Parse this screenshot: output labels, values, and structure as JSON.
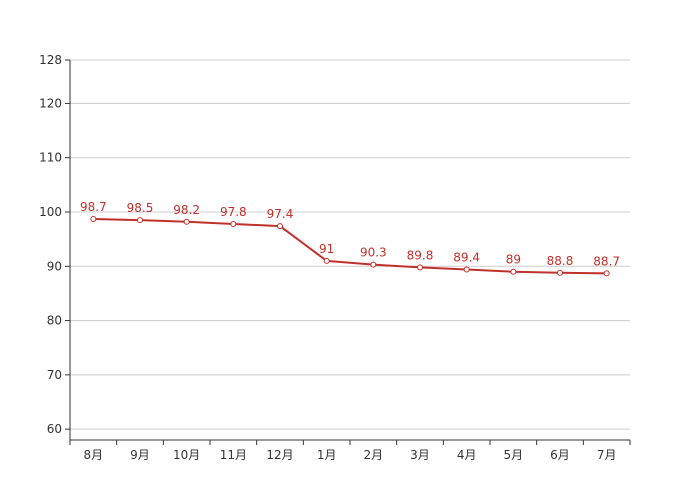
{
  "colors": {
    "series": "#c0312b",
    "grid": "#cccccc",
    "axis": "#333333",
    "point_fill": "#ffffff"
  },
  "chart_data": {
    "type": "line",
    "title": "",
    "xlabel": "",
    "ylabel": "",
    "categories": [
      "8月",
      "9月",
      "10月",
      "11月",
      "12月",
      "1月",
      "2月",
      "3月",
      "4月",
      "5月",
      "6月",
      "7月"
    ],
    "series": [
      {
        "values": [
          98.7,
          98.5,
          98.2,
          97.8,
          97.4,
          91,
          90.3,
          89.8,
          89.4,
          89,
          88.8,
          88.7
        ],
        "labels": [
          "98.7",
          "98.5",
          "98.2",
          "97.8",
          "97.4",
          "91",
          "90.3",
          "89.8",
          "89.4",
          "89",
          "88.8",
          "88.7"
        ]
      }
    ],
    "yticks": [
      60,
      70,
      80,
      90,
      100,
      110,
      120,
      128
    ],
    "ylim": [
      58,
      128
    ],
    "grid": true,
    "legend": "none"
  }
}
